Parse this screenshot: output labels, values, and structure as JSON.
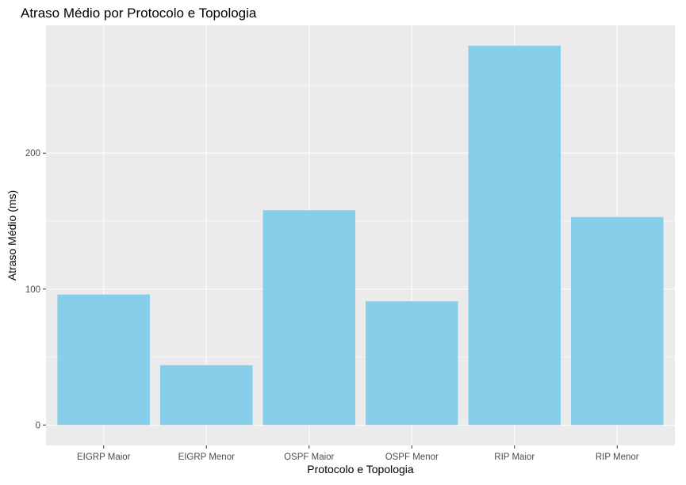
{
  "chart_data": {
    "type": "bar",
    "title": "Atraso Médio por Protocolo e Topologia",
    "xlabel": "Protocolo e Topologia",
    "ylabel": "Atraso Médio (ms)",
    "categories": [
      "EIGRP Maior",
      "EIGRP Menor",
      "OSPF Maior",
      "OSPF Menor",
      "RIP Maior",
      "RIP Menor"
    ],
    "values": [
      96,
      44,
      158,
      91,
      279,
      153
    ],
    "ylim": [
      -15,
      294
    ],
    "yticks": [
      0,
      100,
      200
    ],
    "ytick_labels": [
      "0",
      "100",
      "200"
    ],
    "bar_color": "#87ceeb",
    "panel_color": "#ebebeb",
    "grid": true,
    "legend": "none"
  }
}
